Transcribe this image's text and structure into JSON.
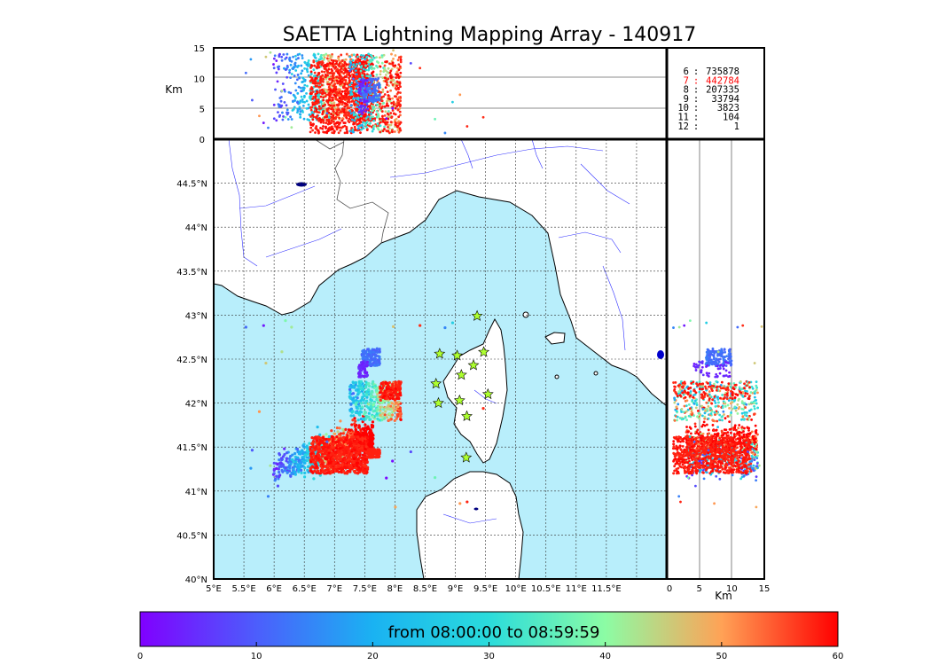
{
  "chart_data": {
    "type": "scatter",
    "title": "SAETTA Lightning Mapping Array - 140917",
    "map": {
      "lon_range": [
        5,
        12.5
      ],
      "lat_range": [
        40,
        45
      ],
      "x_tick_values": [
        5,
        5.5,
        6,
        6.5,
        7,
        7.5,
        8,
        8.5,
        9,
        9.5,
        10,
        10.5,
        11,
        11.5
      ],
      "x_tick_labels": [
        "5°E",
        "5.5°E",
        "6°E",
        "6.5°E",
        "7°E",
        "7.5°E",
        "8°E",
        "8.5°E",
        "9°E",
        "9.5°E",
        "10°E",
        "10.5°E",
        "11°E",
        "11.5°E"
      ],
      "y_tick_values": [
        40,
        40.5,
        41,
        41.5,
        42,
        42.5,
        43,
        43.5,
        44,
        44.5
      ],
      "y_tick_labels": [
        "40°N",
        "40.5°N",
        "41°N",
        "41.5°N",
        "42°N",
        "42.5°N",
        "43°N",
        "43.5°N",
        "44°N",
        "44.5°N"
      ],
      "sea_color": "#b8eefb",
      "land_color": "#ffffff",
      "stations": [
        {
          "lon": 9.36,
          "lat": 42.99
        },
        {
          "lon": 8.74,
          "lat": 42.56
        },
        {
          "lon": 9.03,
          "lat": 42.54
        },
        {
          "lon": 9.47,
          "lat": 42.58
        },
        {
          "lon": 9.3,
          "lat": 42.43
        },
        {
          "lon": 9.1,
          "lat": 42.32
        },
        {
          "lon": 8.68,
          "lat": 42.22
        },
        {
          "lon": 9.54,
          "lat": 42.1
        },
        {
          "lon": 8.72,
          "lat": 42.0
        },
        {
          "lon": 9.07,
          "lat": 42.03
        },
        {
          "lon": 9.19,
          "lat": 41.85
        },
        {
          "lon": 9.18,
          "lat": 41.38
        }
      ],
      "station_color": "#adff2f",
      "clusters": [
        {
          "lon": [
            5.95,
            7.65
          ],
          "lat": [
            41.15,
            41.75
          ],
          "time": [
            5,
            58
          ]
        },
        {
          "lon": [
            7.25,
            8.1
          ],
          "lat": [
            41.8,
            42.25
          ],
          "time": [
            20,
            55
          ]
        },
        {
          "lon": [
            7.45,
            7.75
          ],
          "lat": [
            42.42,
            42.62
          ],
          "time": [
            10,
            14
          ]
        },
        {
          "lon": [
            7.4,
            7.55
          ],
          "lat": [
            42.28,
            42.48
          ],
          "time": [
            2,
            6
          ]
        }
      ]
    },
    "altitude_lon": {
      "ylabel": "Km",
      "ylim": [
        0,
        15
      ],
      "y_ticks": [
        "0",
        "5",
        "10",
        "15"
      ]
    },
    "altitude_lat": {
      "xlabel": "Km",
      "xlim": [
        0,
        15
      ],
      "x_ticks": [
        "0",
        "5",
        "10",
        "15"
      ]
    },
    "histogram": [
      {
        "label": "6",
        "sep": ":",
        "count": "735878",
        "color": "#000000"
      },
      {
        "label": "7",
        "sep": ":",
        "count": "442784",
        "color": "#ff0000"
      },
      {
        "label": "8",
        "sep": ":",
        "count": "207335",
        "color": "#000000"
      },
      {
        "label": "9",
        "sep": ":",
        "count": "33794",
        "color": "#000000"
      },
      {
        "label": "10",
        "sep": ":",
        "count": "3823",
        "color": "#000000"
      },
      {
        "label": "11",
        "sep": ":",
        "count": "104",
        "color": "#000000"
      },
      {
        "label": "12",
        "sep": ":",
        "count": "1",
        "color": "#000000"
      }
    ],
    "colorbar": {
      "label": "from 08:00:00 to 08:59:59",
      "range": [
        0,
        60
      ],
      "tick_values": [
        0,
        10,
        20,
        30,
        40,
        50,
        60
      ],
      "tick_labels": [
        "0",
        "10",
        "20",
        "30",
        "40",
        "50",
        "60"
      ],
      "colormap": "rainbow"
    }
  }
}
